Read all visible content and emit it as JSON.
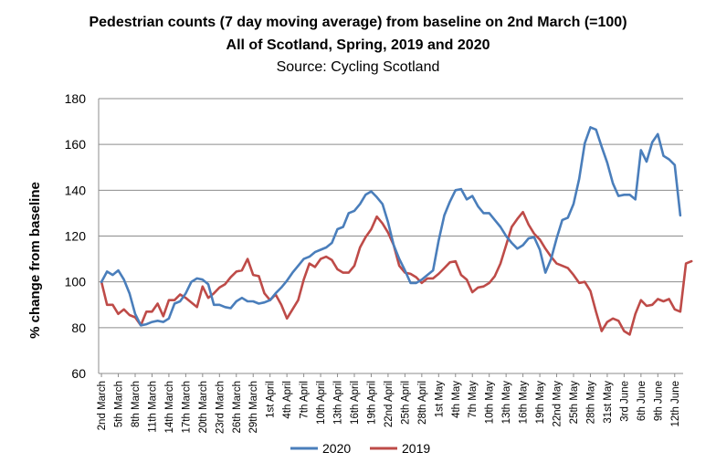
{
  "chart_data": {
    "type": "line",
    "title": "Pedestrian counts (7 day moving average) from baseline on 2nd March (=100)",
    "subtitle": "All of Scotland, Spring, 2019 and 2020",
    "source": "Source: Cycling Scotland",
    "xlabel": "",
    "ylabel": "% change from baseline",
    "ylim": [
      60,
      180
    ],
    "yticks": [
      60,
      80,
      100,
      120,
      140,
      160,
      180
    ],
    "grid": true,
    "legend_position": "bottom",
    "tick_labels": [
      "2nd March",
      "5th March",
      "8th March",
      "11th March",
      "14th March",
      "17th March",
      "20th March",
      "23rd March",
      "26th March",
      "29th March",
      "1st April",
      "4th April",
      "7th April",
      "10th April",
      "13th April",
      "16th April",
      "19th April",
      "22nd April",
      "25th April",
      "28th April",
      "1st May",
      "4th May",
      "7th May",
      "10th May",
      "13th May",
      "16th May",
      "19th May",
      "22nd May",
      "25th May",
      "28th May",
      "31st May",
      "3rd June",
      "6th June",
      "9th June",
      "12th June"
    ],
    "series": [
      {
        "name": "2020",
        "color": "#4a7ebb",
        "values": [
          100,
          104.5,
          103,
          105,
          101,
          95,
          86,
          81,
          81.5,
          82.5,
          83,
          82.5,
          84,
          90.5,
          91.5,
          95,
          100,
          101.5,
          101,
          99,
          90,
          90,
          89,
          88.5,
          91.5,
          93,
          91.5,
          91.5,
          90.5,
          91,
          92,
          95,
          97.5,
          100.5,
          104,
          107,
          110,
          111,
          113,
          114,
          115,
          117,
          123,
          124,
          130,
          131,
          134,
          138,
          139.5,
          137,
          134,
          126,
          116,
          110,
          105,
          99.5,
          99.5,
          101,
          103,
          105,
          118,
          129,
          135,
          140,
          140.5,
          136,
          137.5,
          133,
          130,
          130,
          127,
          124,
          120,
          117,
          114.5,
          116,
          119,
          119.5,
          114,
          104,
          110,
          119,
          127,
          128,
          134,
          145,
          160.5,
          167.5,
          166.5,
          159,
          152,
          143,
          137.5,
          138,
          138,
          136,
          157.5,
          152.5,
          161,
          164.5,
          155,
          153.5,
          151,
          129
        ]
      },
      {
        "name": "2019",
        "color": "#be4b48",
        "values": [
          100,
          90,
          90,
          86,
          88,
          85.5,
          84.5,
          81,
          87,
          87,
          90.5,
          85,
          92,
          92,
          94.5,
          93,
          91,
          89,
          98,
          93,
          95,
          97.5,
          99,
          102,
          104.5,
          105,
          110,
          103,
          102.5,
          95,
          92,
          94.5,
          90,
          84,
          88,
          92,
          101,
          108,
          106.5,
          110,
          111,
          109.5,
          105.5,
          104,
          104,
          107,
          115,
          119.5,
          123,
          128.5,
          125.5,
          121.5,
          116,
          107,
          104,
          103.5,
          102,
          99.5,
          101.5,
          101.5,
          103.5,
          106,
          108.5,
          109,
          103,
          101,
          95.5,
          97.5,
          98,
          99.5,
          102.5,
          108,
          116,
          124,
          127.5,
          130.5,
          125,
          121,
          118.5,
          114.5,
          111,
          108,
          107,
          106,
          103,
          99.5,
          100,
          96,
          87,
          78.5,
          82.5,
          84,
          83,
          78.5,
          77,
          86,
          92,
          89.5,
          90,
          92.5,
          91.5,
          92.5,
          88,
          87,
          108,
          109
        ]
      }
    ]
  }
}
